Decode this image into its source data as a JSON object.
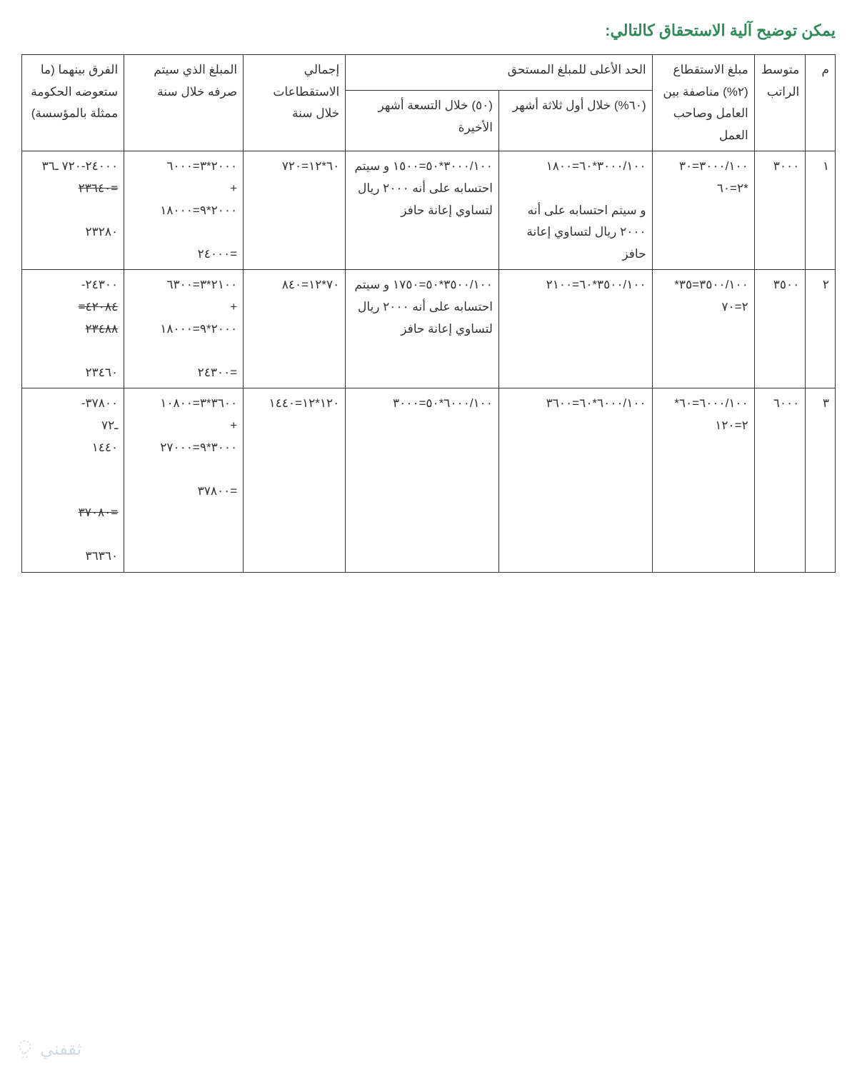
{
  "title": "يمكن توضيح آلية الاستحقاق كالتالي:",
  "colors": {
    "title": "#2e8b57",
    "border": "#333333",
    "text": "#333333",
    "background": "#ffffff",
    "watermark": "#9bb8c9"
  },
  "typography": {
    "title_fontsize": 22,
    "cell_fontsize": 17,
    "font_family": "Tahoma"
  },
  "headers": {
    "m": "م",
    "avg": "متوسط الراتب",
    "ded": "مبلغ الاستقطاع (٢%) مناصفة بين العامل وصاحب العمل",
    "max": "الحد الأعلى للمبلغ المستحق",
    "max60": "(٦٠%) خلال أول ثلاثة أشهر",
    "max50": "(٥٠) خلال التسعة أشهر الأخيرة",
    "tot": "إجمالي الاستقطاعات خلال سنة",
    "pay": "المبلغ الذي سيتم صرفه خلال سنة",
    "dif": "الفرق بينهما (ما ستعوضه الحكومة ممثلة بالمؤسسة)"
  },
  "rows": [
    {
      "m": "١",
      "avg": "٣٠٠٠",
      "ded": "٣٠٠٠/١٠٠=٣٠ *٢=٦٠",
      "c60": "٣٠٠٠/١٠٠*٦٠=١٨٠٠\n\nو سيتم احتسابه على أنه ٢٠٠٠ ريال لتساوي إعانة حافز",
      "c50": "٣٠٠٠/١٠٠*٥٠=١٥٠٠ و سيتم احتسابه على أنه ٢٠٠٠ ريال لتساوي إعانة حافز",
      "tot": "٦٠*١٢=٧٢٠",
      "pay": "٢٠٠٠*٣=٦٠٠٠\n+\n٢٠٠٠*٩=١٨٠٠٠\n\n=٢٤٠٠٠",
      "dif_l1": "٢٤٠٠٠-٧٢٠ ‏ـ٣٦",
      "dif_l2": "=٢٣٦٤٠",
      "dif_l3": "٢٣٢٨٠"
    },
    {
      "m": "٢",
      "avg": "٣٥٠٠",
      "ded": "٣٥٠٠/١٠٠=٣٥* ٢=٧٠",
      "c60": "٣٥٠٠/١٠٠*٦٠=٢١٠٠",
      "c50": "٣٥٠٠/١٠٠*٥٠=١٧٥٠ و سيتم احتسابه على أنه ٢٠٠٠ ريال لتساوي إعانة حافز",
      "tot": "٧٠*١٢=٨٤٠",
      "pay": "٢١٠٠*٣=٦٣٠٠\n+\n٢٠٠٠*٩=١٨٠٠٠\n\n=٢٤٣٠٠",
      "dif_l1": "٢٤٣٠٠-",
      "dif_l2": "٤٢٠٨٤=",
      "dif_l3": "٢٣٤٨٨",
      "dif_l4": "٢٣٤٦٠"
    },
    {
      "m": "٣",
      "avg": "٦٠٠٠",
      "ded": "٦٠٠٠/١٠٠=٦٠* ٢=١٢٠",
      "c60": "٦٠٠٠/١٠٠*٦٠=٣٦٠٠",
      "c50": "٦٠٠٠/١٠٠*٥٠=٣٠٠٠",
      "tot": "١٢٠*١٢=١٤٤٠",
      "pay": "٣٦٠٠*٣=١٠٨٠٠\n+\n٣٠٠٠*٩=٢٧٠٠٠\n\n=٣٧٨٠٠",
      "dif_l1": "٣٧٨٠٠-",
      "dif_l2": "ـ٧٢",
      "dif_l3": "١٤٤٠",
      "dif_l4": "=٣٧٠٨٠",
      "dif_l5": "٣٦٣٦٠"
    }
  ],
  "watermark": "ثقفني"
}
